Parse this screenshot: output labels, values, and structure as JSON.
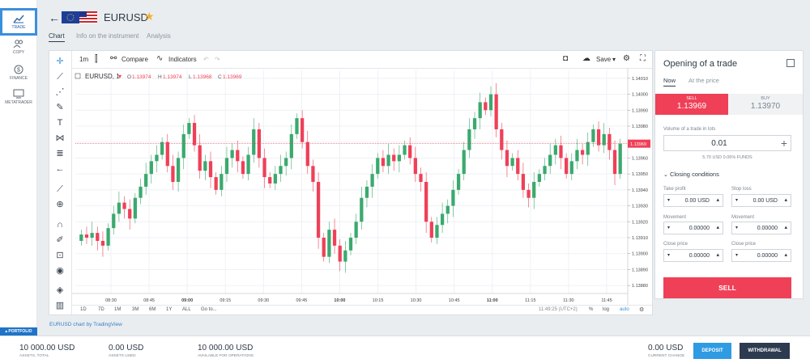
{
  "sidebar": {
    "items": [
      {
        "label": "TRADE",
        "icon": "chart-icon"
      },
      {
        "label": "COPY",
        "icon": "users-icon"
      },
      {
        "label": "FINANCE",
        "icon": "dollar-icon"
      },
      {
        "label": "METATRADER",
        "icon": "monitor-icon"
      }
    ],
    "portfolio_label": "PORTFOLIO"
  },
  "header": {
    "symbol": "EURUSD",
    "tabs": [
      "Chart",
      "Info on the instrument",
      "Analysis"
    ]
  },
  "chart_toolbar": {
    "interval": "1m",
    "compare": "Compare",
    "indicators": "Indicators",
    "save": "Save"
  },
  "legend": {
    "title": "EURUSD, 1",
    "o_label": "O",
    "o": "1.13974",
    "h_label": "H",
    "h": "1.13974",
    "l_label": "L",
    "l": "1.13968",
    "c_label": "C",
    "c": "1.13969"
  },
  "bottom_bar": {
    "ranges": [
      "1D",
      "7D",
      "1M",
      "3M",
      "6M",
      "1Y",
      "ALL",
      "Go to..."
    ],
    "time": "11:49:25 (UTC+2)",
    "pct": "%",
    "log": "log",
    "auto": "auto"
  },
  "chart_credit": "EURUSD chart by TradingView",
  "chart_data": {
    "type": "candlestick",
    "symbol": "EURUSD",
    "interval": "1m",
    "x_ticks": [
      "08:30",
      "08:45",
      "09:00",
      "09:15",
      "09:30",
      "09:45",
      "10:00",
      "10:15",
      "10:30",
      "10:45",
      "11:00",
      "11:15",
      "11:30",
      "11:45"
    ],
    "y_ticks": [
      "1.14010",
      "1.14000",
      "1.13990",
      "1.13980",
      "1.13970",
      "1.13960",
      "1.13950",
      "1.13940",
      "1.13930",
      "1.13920",
      "1.13910",
      "1.13900",
      "1.13890",
      "1.13880"
    ],
    "ylim": [
      1.13875,
      1.14015
    ],
    "last_price": 1.13969,
    "last_price_label": "1.13969",
    "colors": {
      "up": "#3ba96e",
      "down": "#ef4058"
    },
    "grid": true,
    "closes": [
      1.13912,
      1.1391,
      1.13913,
      1.13908,
      1.13905,
      1.13916,
      1.13925,
      1.13932,
      1.13928,
      1.13922,
      1.13935,
      1.13942,
      1.1395,
      1.13958,
      1.13962,
      1.1397,
      1.13955,
      1.13945,
      1.1396,
      1.13975,
      1.13982,
      1.13968,
      1.13952,
      1.13958,
      1.13948,
      1.1394,
      1.1395,
      1.1396,
      1.13965,
      1.13958,
      1.1395,
      1.13962,
      1.13978,
      1.1396,
      1.13948,
      1.13944,
      1.1395,
      1.13955,
      1.1396,
      1.13975,
      1.13985,
      1.1397,
      1.13955,
      1.13945,
      1.1391,
      1.13898,
      1.13915,
      1.13905,
      1.13895,
      1.13902,
      1.1391,
      1.1392,
      1.13935,
      1.13942,
      1.1395,
      1.1396,
      1.13955,
      1.13962,
      1.13958,
      1.13962,
      1.13968,
      1.1396,
      1.1395,
      1.13945,
      1.1392,
      1.1391,
      1.13918,
      1.13925,
      1.1393,
      1.1394,
      1.1395,
      1.13965,
      1.13978,
      1.13985,
      1.13995,
      1.1399,
      1.14,
      1.13978,
      1.13965,
      1.13955,
      1.1396,
      1.1395,
      1.1394,
      1.13935,
      1.13945,
      1.1395,
      1.13955,
      1.13962,
      1.13968,
      1.1396,
      1.1395,
      1.13958,
      1.13965,
      1.13962,
      1.1397,
      1.13978,
      1.13968,
      1.13975,
      1.13965,
      1.1395,
      1.13969
    ]
  },
  "trade": {
    "title": "Opening of a trade",
    "tab_now": "Now",
    "tab_at_price": "At the price",
    "sell_label": "SELL",
    "sell_price": "1.13969",
    "buy_label": "BUY",
    "buy_price": "1.13970",
    "volume_label": "Volume of a trade in lots",
    "volume_value": "0.01",
    "volume_info": "5.70 USD  0.06% FUNDS",
    "closing_title": "Closing conditions",
    "take_profit_label": "Take profit",
    "take_profit_value": "0.00 USD",
    "stop_loss_label": "Stop loss",
    "stop_loss_value": "0.00 USD",
    "movement_label": "Movement",
    "movement_value": "0.00000",
    "close_price_label": "Close price",
    "close_price_value": "0.00000",
    "sell_button": "SELL"
  },
  "footer": {
    "assets_total": "10 000.00 USD",
    "assets_total_label": "ASSETS, TOTAL",
    "assets_used": "0.00 USD",
    "assets_used_label": "ASSETS USED",
    "available": "10 000.00 USD",
    "available_label": "AVAILABLE FOR OPERATIONS",
    "current_change": "0.00 USD",
    "current_change_label": "CURRENT CHANGE",
    "deposit": "DEPOSIT",
    "withdrawal": "WITHDRAWAL"
  }
}
